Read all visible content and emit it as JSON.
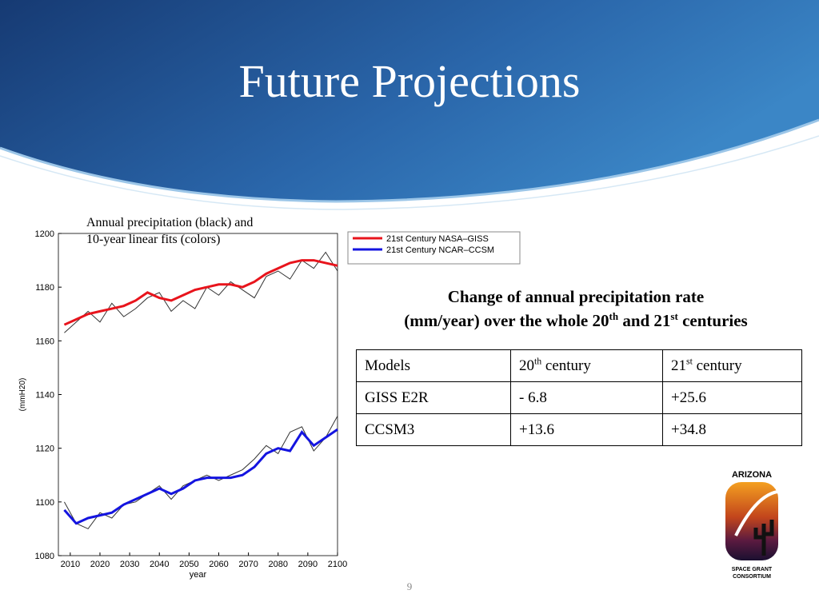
{
  "title": "Future Projections",
  "caption": [
    "Annual precipitation (black) and",
    "10-year linear fits (colors)"
  ],
  "chart_data": {
    "type": "line",
    "xlabel": "year",
    "ylabel": "(mmH20)",
    "x": [
      2008,
      2012,
      2016,
      2020,
      2024,
      2028,
      2032,
      2036,
      2040,
      2044,
      2048,
      2052,
      2056,
      2060,
      2064,
      2068,
      2072,
      2076,
      2080,
      2084,
      2088,
      2092,
      2096,
      2100
    ],
    "series": [
      {
        "color": "#333333",
        "line_width": 1,
        "values": [
          1163,
          1167,
          1171,
          1167,
          1174,
          1169,
          1172,
          1176,
          1178,
          1171,
          1175,
          1172,
          1180,
          1177,
          1182,
          1179,
          1176,
          1184,
          1186,
          1183,
          1190,
          1187,
          1193,
          1186
        ]
      },
      {
        "color": "#333333",
        "line_width": 1,
        "values": [
          1100,
          1092,
          1090,
          1096,
          1094,
          1099,
          1100,
          1103,
          1106,
          1101,
          1106,
          1108,
          1110,
          1108,
          1110,
          1112,
          1116,
          1121,
          1118,
          1126,
          1128,
          1119,
          1124,
          1132
        ]
      },
      {
        "name": "21st Century NASA–GISS",
        "color": "#e8141c",
        "line_width": 3,
        "values": [
          1166,
          1168,
          1170,
          1171,
          1172,
          1173,
          1175,
          1178,
          1176,
          1175,
          1177,
          1179,
          1180,
          1181,
          1181,
          1180,
          1182,
          1185,
          1187,
          1189,
          1190,
          1190,
          1189,
          1188
        ]
      },
      {
        "name": "21st Century NCAR–CCSM",
        "color": "#1414e0",
        "line_width": 3,
        "values": [
          1097,
          1092,
          1094,
          1095,
          1096,
          1099,
          1101,
          1103,
          1105,
          1103,
          1105,
          1108,
          1109,
          1109,
          1109,
          1110,
          1113,
          1118,
          1120,
          1119,
          1126,
          1121,
          1124,
          1127
        ]
      }
    ],
    "xlim": [
      2006,
      2100
    ],
    "xticks": [
      2010,
      2020,
      2030,
      2040,
      2050,
      2060,
      2070,
      2080,
      2090,
      2100
    ],
    "ylim": [
      1080,
      1200
    ],
    "yticks": [
      1080,
      1100,
      1120,
      1140,
      1160,
      1180,
      1200
    ],
    "grid": false,
    "legend": "top-right"
  },
  "table": {
    "title": [
      "Change of annual precipitation rate",
      "(mm/year) over the whole 20",
      "th",
      " and 21",
      "st",
      " centuries"
    ],
    "header": [
      "Models",
      [
        "20",
        "th",
        " century"
      ],
      [
        "21",
        "st",
        " century"
      ]
    ],
    "rows": [
      [
        "GISS E2R",
        "- 6.8",
        "+25.6"
      ],
      [
        "CCSM3",
        "+13.6",
        "+34.8"
      ]
    ]
  },
  "logo": {
    "top": "ARIZONA",
    "bottom": [
      "SPACE GRANT",
      "CONSORTIUM"
    ]
  },
  "page_number": "9"
}
